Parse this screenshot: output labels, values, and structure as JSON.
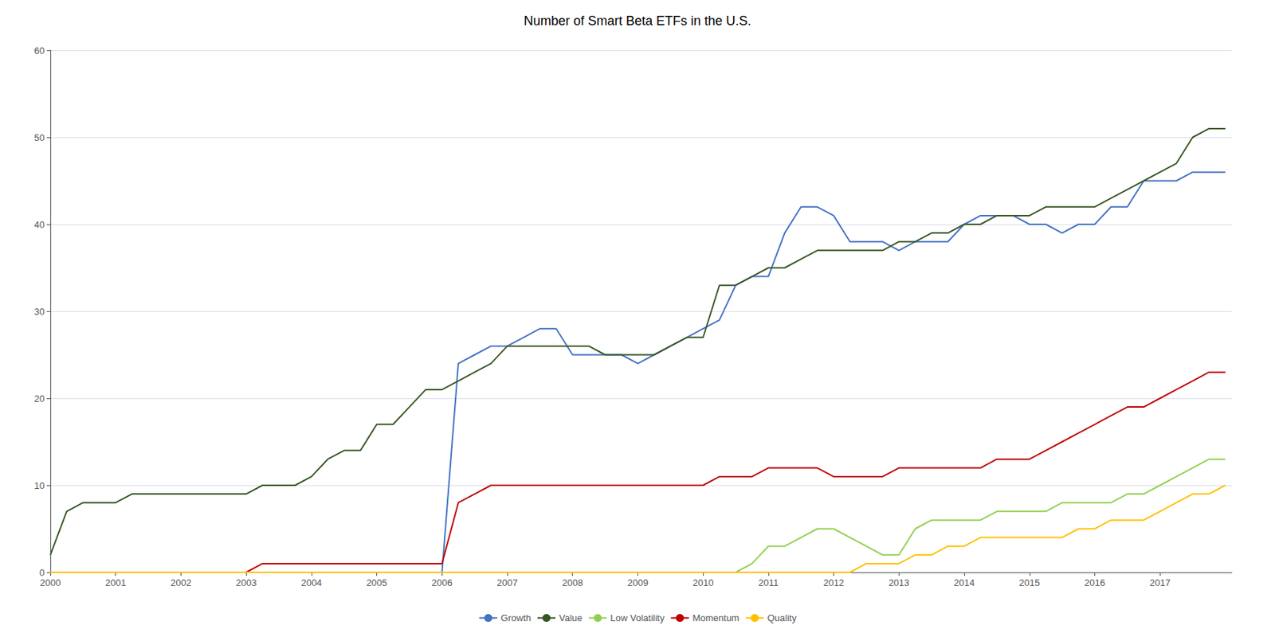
{
  "chart_data": {
    "type": "line",
    "title": "Number of Smart Beta ETFs in the U.S.",
    "x": [
      2000,
      2000.25,
      2000.5,
      2000.75,
      2001,
      2001.25,
      2001.5,
      2001.75,
      2002,
      2002.25,
      2002.5,
      2002.75,
      2003,
      2003.25,
      2003.5,
      2003.75,
      2004,
      2004.25,
      2004.5,
      2004.75,
      2005,
      2005.25,
      2005.5,
      2005.75,
      2006,
      2006.25,
      2006.5,
      2006.75,
      2007,
      2007.25,
      2007.5,
      2007.75,
      2008,
      2008.25,
      2008.5,
      2008.75,
      2009,
      2009.25,
      2009.5,
      2009.75,
      2010,
      2010.25,
      2010.5,
      2010.75,
      2011,
      2011.25,
      2011.5,
      2011.75,
      2012,
      2012.25,
      2012.5,
      2012.75,
      2013,
      2013.25,
      2013.5,
      2013.75,
      2014,
      2014.25,
      2014.5,
      2014.75,
      2015,
      2015.25,
      2015.5,
      2015.75,
      2016,
      2016.25,
      2016.5,
      2016.75,
      2017,
      2017.25,
      2017.5,
      2017.75,
      2018
    ],
    "series": [
      {
        "name": "Growth",
        "color": "#4472C4",
        "values": [
          0,
          0,
          0,
          0,
          0,
          0,
          0,
          0,
          0,
          0,
          0,
          0,
          0,
          0,
          0,
          0,
          0,
          0,
          0,
          0,
          0,
          0,
          0,
          0,
          0,
          24,
          25,
          26,
          26,
          27,
          28,
          28,
          25,
          25,
          25,
          25,
          24,
          25,
          26,
          27,
          28,
          29,
          33,
          34,
          34,
          39,
          42,
          42,
          41,
          38,
          38,
          38,
          37,
          38,
          38,
          38,
          40,
          41,
          41,
          41,
          40,
          40,
          39,
          40,
          40,
          42,
          42,
          45,
          45,
          45,
          46,
          46,
          46
        ]
      },
      {
        "name": "Value",
        "color": "#375623",
        "values": [
          2,
          7,
          8,
          8,
          8,
          9,
          9,
          9,
          9,
          9,
          9,
          9,
          9,
          10,
          10,
          10,
          11,
          13,
          14,
          14,
          17,
          17,
          19,
          21,
          21,
          22,
          23,
          24,
          26,
          26,
          26,
          26,
          26,
          26,
          25,
          25,
          25,
          25,
          26,
          27,
          27,
          33,
          33,
          34,
          35,
          35,
          36,
          37,
          37,
          37,
          37,
          37,
          38,
          38,
          39,
          39,
          40,
          40,
          41,
          41,
          41,
          42,
          42,
          42,
          42,
          43,
          44,
          45,
          46,
          47,
          50,
          51,
          51
        ]
      },
      {
        "name": "Low Volatility",
        "color": "#92D050",
        "values": [
          0,
          0,
          0,
          0,
          0,
          0,
          0,
          0,
          0,
          0,
          0,
          0,
          0,
          0,
          0,
          0,
          0,
          0,
          0,
          0,
          0,
          0,
          0,
          0,
          0,
          0,
          0,
          0,
          0,
          0,
          0,
          0,
          0,
          0,
          0,
          0,
          0,
          0,
          0,
          0,
          0,
          0,
          0,
          1,
          3,
          3,
          4,
          5,
          5,
          4,
          3,
          2,
          2,
          5,
          6,
          6,
          6,
          6,
          7,
          7,
          7,
          7,
          8,
          8,
          8,
          8,
          9,
          9,
          10,
          11,
          12,
          13,
          13
        ]
      },
      {
        "name": "Momentum",
        "color": "#C00000",
        "values": [
          0,
          0,
          0,
          0,
          0,
          0,
          0,
          0,
          0,
          0,
          0,
          0,
          0,
          1,
          1,
          1,
          1,
          1,
          1,
          1,
          1,
          1,
          1,
          1,
          1,
          8,
          9,
          10,
          10,
          10,
          10,
          10,
          10,
          10,
          10,
          10,
          10,
          10,
          10,
          10,
          10,
          11,
          11,
          11,
          12,
          12,
          12,
          12,
          11,
          11,
          11,
          11,
          12,
          12,
          12,
          12,
          12,
          12,
          13,
          13,
          13,
          14,
          15,
          16,
          17,
          18,
          19,
          19,
          20,
          21,
          22,
          23,
          23
        ]
      },
      {
        "name": "Quality",
        "color": "#FFC000",
        "values": [
          0,
          0,
          0,
          0,
          0,
          0,
          0,
          0,
          0,
          0,
          0,
          0,
          0,
          0,
          0,
          0,
          0,
          0,
          0,
          0,
          0,
          0,
          0,
          0,
          0,
          0,
          0,
          0,
          0,
          0,
          0,
          0,
          0,
          0,
          0,
          0,
          0,
          0,
          0,
          0,
          0,
          0,
          0,
          0,
          0,
          0,
          0,
          0,
          0,
          0,
          1,
          1,
          1,
          2,
          2,
          3,
          3,
          4,
          4,
          4,
          4,
          4,
          4,
          5,
          5,
          6,
          6,
          6,
          7,
          8,
          9,
          9,
          10
        ]
      }
    ],
    "xlim": [
      2000,
      2018.1
    ],
    "xticks": [
      2000,
      2001,
      2002,
      2003,
      2004,
      2005,
      2006,
      2007,
      2008,
      2009,
      2010,
      2011,
      2012,
      2013,
      2014,
      2015,
      2016,
      2017
    ],
    "ylim": [
      0,
      60
    ],
    "yticks": [
      0,
      10,
      20,
      30,
      40,
      50,
      60
    ],
    "grid": true,
    "legend": "bottom"
  }
}
